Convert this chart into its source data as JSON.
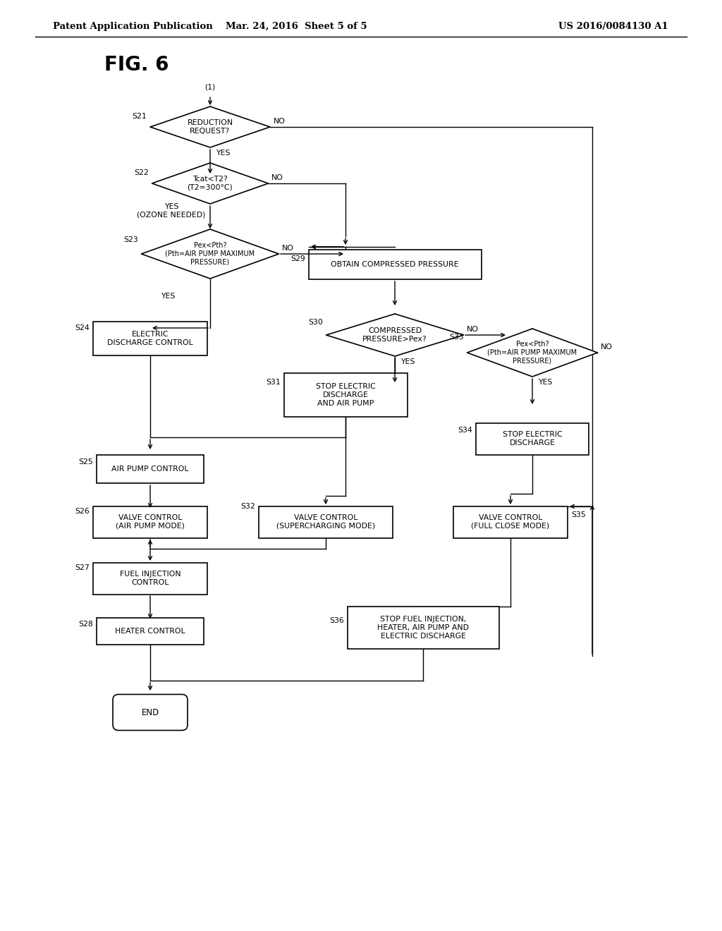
{
  "bg_color": "#ffffff",
  "header_left": "Patent Application Publication",
  "header_mid": "Mar. 24, 2016  Sheet 5 of 5",
  "header_right": "US 2016/0084130 A1",
  "fig_label": "FIG. 6"
}
